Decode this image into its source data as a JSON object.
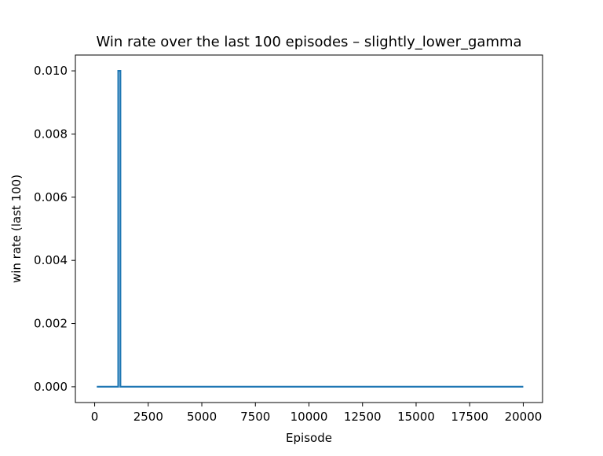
{
  "chart_data": {
    "type": "line",
    "title": "Win rate over the last 100 episodes – slightly_lower_gamma",
    "xlabel": "Episode",
    "ylabel": "win rate (last 100)",
    "xlim": [
      -900,
      20900
    ],
    "ylim": [
      -0.0005,
      0.0105
    ],
    "xticks": [
      0,
      2500,
      5000,
      7500,
      10000,
      12500,
      15000,
      17500,
      20000
    ],
    "xtick_labels": [
      "0",
      "2500",
      "5000",
      "7500",
      "10000",
      "12500",
      "15000",
      "17500",
      "20000"
    ],
    "yticks": [
      0.0,
      0.002,
      0.004,
      0.006,
      0.008,
      0.01
    ],
    "ytick_labels": [
      "0.000",
      "0.002",
      "0.004",
      "0.006",
      "0.008",
      "0.010"
    ],
    "grid": false,
    "legend": "none",
    "series": [
      {
        "color": "#1f77b4",
        "x": [
          100,
          1100,
          1101,
          1200,
          1201,
          20000
        ],
        "y": [
          0.0,
          0.0,
          0.01,
          0.01,
          0.0,
          0.0
        ]
      }
    ]
  }
}
